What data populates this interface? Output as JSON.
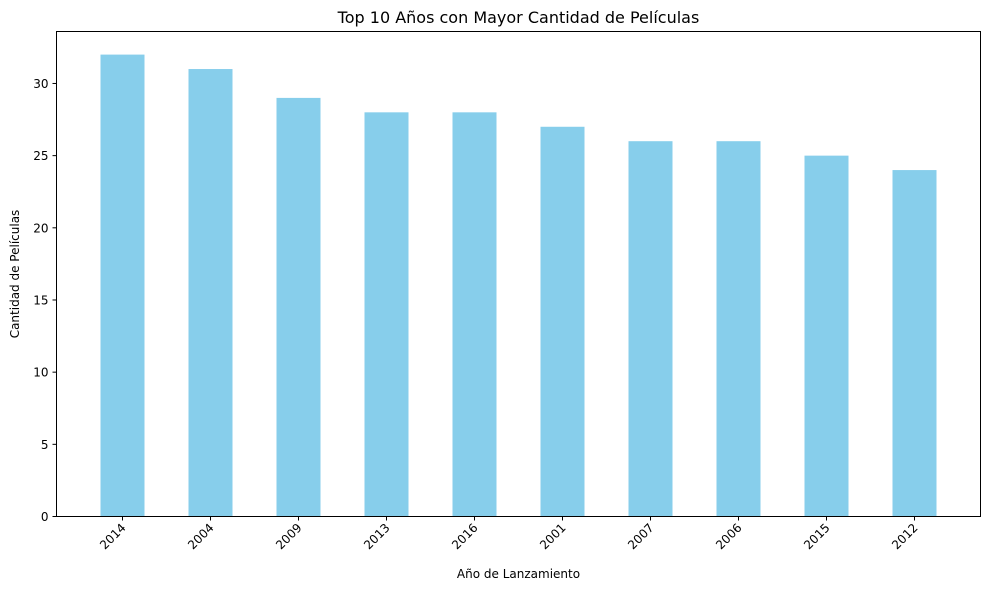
{
  "chart_data": {
    "type": "bar",
    "title": "Top 10 Años con Mayor Cantidad de Películas",
    "xlabel": "Año de Lanzamiento",
    "ylabel": "Cantidad de Películas",
    "categories": [
      "2014",
      "2004",
      "2009",
      "2013",
      "2016",
      "2001",
      "2007",
      "2006",
      "2015",
      "2012"
    ],
    "values": [
      32,
      31,
      29,
      28,
      28,
      27,
      26,
      26,
      25,
      24
    ],
    "ylim": [
      0,
      33.6
    ],
    "yticks": [
      0,
      5,
      10,
      15,
      20,
      25,
      30
    ],
    "bar_color": "#87ceeb",
    "grid": false,
    "legend": false
  }
}
